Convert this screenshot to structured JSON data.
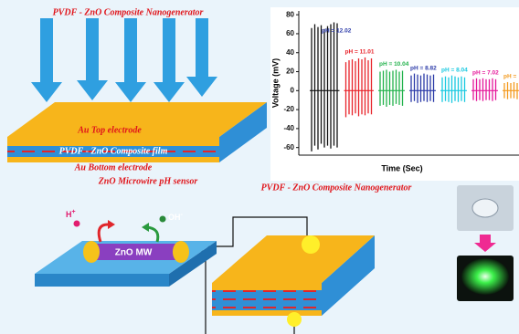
{
  "figure_top": {
    "title": "PVDF - ZnO Composite Nanogenerator",
    "top_electrode": "Au Top electrode",
    "film": "PVDF - ZnO Composite film",
    "bottom_electrode": "Au Bottom electrode"
  },
  "chart_data": {
    "type": "spike",
    "ylabel": "Voltage (mV)",
    "xlabel": "Time (Sec)",
    "ylim": [
      -68,
      84
    ],
    "yticks": [
      -60,
      -40,
      -20,
      0,
      20,
      40,
      60,
      80
    ],
    "series": [
      {
        "name": "pH = 12.02",
        "color": "#111111",
        "values": [
          66,
          70,
          67,
          69,
          65,
          68,
          70,
          72,
          71
        ],
        "lows": [
          -64,
          -58,
          -62,
          -56,
          -60,
          -58,
          -61,
          -58,
          -60
        ]
      },
      {
        "name": "pH = 11.01",
        "color": "#e8232a",
        "values": [
          30,
          32,
          33,
          31,
          34,
          33,
          35,
          32,
          34
        ],
        "lows": [
          -28,
          -25,
          -26,
          -24,
          -27,
          -25,
          -26,
          -24,
          -25
        ]
      },
      {
        "name": "pH = 10.04",
        "color": "#22b24c",
        "values": [
          20,
          21,
          22,
          20,
          21,
          22,
          20,
          21
        ],
        "lows": [
          -16,
          -15,
          -17,
          -15,
          -16,
          -14,
          -15,
          -16
        ]
      },
      {
        "name": "pH = 8.82",
        "color": "#2b3aa8",
        "values": [
          16,
          18,
          17,
          16,
          18,
          17,
          16,
          17
        ],
        "lows": [
          -12,
          -11,
          -13,
          -12,
          -11,
          -12,
          -11,
          -12
        ]
      },
      {
        "name": "pH = 8.04",
        "color": "#19c9e0",
        "values": [
          14,
          15,
          14,
          16,
          15,
          14,
          15,
          14
        ],
        "lows": [
          -12,
          -11,
          -12,
          -13,
          -11,
          -12,
          -11,
          -12
        ]
      },
      {
        "name": "pH = 7.02",
        "color": "#e5189a",
        "values": [
          12,
          13,
          12,
          13,
          12,
          12,
          13,
          12
        ],
        "lows": [
          -10,
          -11,
          -10,
          -11,
          -10,
          -10,
          -11,
          -10
        ]
      },
      {
        "name": "pH =",
        "color": "#f39a1e",
        "values": [
          8,
          9,
          8,
          9,
          8
        ],
        "lows": [
          -8,
          -9,
          -8,
          -8,
          -9
        ]
      }
    ]
  },
  "figure_bottom": {
    "sensor_title": "ZnO Microwire pH sensor",
    "generator_title": "PVDF - ZnO Composite Nanogenerator",
    "h_ion": {
      "base": "H",
      "sup": "+"
    },
    "oh_ion": {
      "base": "OH",
      "sup": "-"
    },
    "wire": "ZnO MW"
  }
}
